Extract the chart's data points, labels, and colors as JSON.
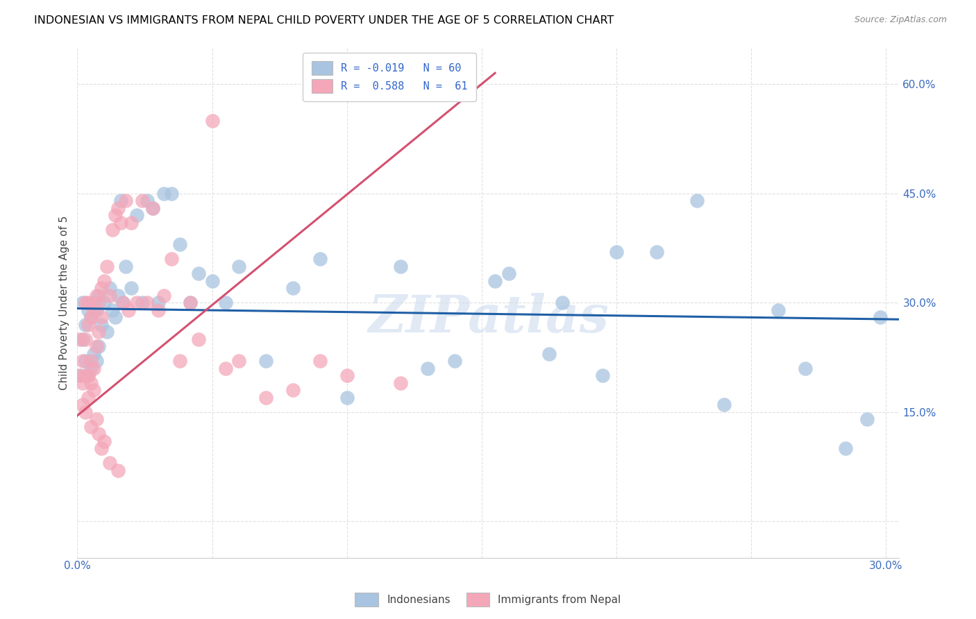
{
  "title": "INDONESIAN VS IMMIGRANTS FROM NEPAL CHILD POVERTY UNDER THE AGE OF 5 CORRELATION CHART",
  "source": "Source: ZipAtlas.com",
  "ylabel": "Child Poverty Under the Age of 5",
  "legend1": "Indonesians",
  "legend2": "Immigrants from Nepal",
  "xlim": [
    0.0,
    0.305
  ],
  "ylim": [
    -0.05,
    0.65
  ],
  "ytick_positions": [
    0.0,
    0.15,
    0.3,
    0.45,
    0.6
  ],
  "ytick_labels": [
    "",
    "15.0%",
    "30.0%",
    "45.0%",
    "60.0%"
  ],
  "xtick_positions": [
    0.0,
    0.05,
    0.1,
    0.15,
    0.2,
    0.25,
    0.3
  ],
  "xtick_labels": [
    "0.0%",
    "",
    "",
    "",
    "",
    "",
    "30.0%"
  ],
  "watermark": "ZIPatlas",
  "blue_color": "#a8c4e0",
  "pink_color": "#f4a7b9",
  "line_blue_color": "#1f5fa6",
  "line_pink_color": "#d45070",
  "blue_line_x": [
    0.0,
    0.305
  ],
  "blue_line_y": [
    0.292,
    0.277
  ],
  "pink_line_x": [
    0.0,
    0.155
  ],
  "pink_line_y": [
    0.145,
    0.615
  ],
  "indo_x": [
    0.001,
    0.002,
    0.002,
    0.003,
    0.003,
    0.004,
    0.004,
    0.005,
    0.005,
    0.006,
    0.006,
    0.007,
    0.007,
    0.008,
    0.008,
    0.009,
    0.01,
    0.011,
    0.012,
    0.013,
    0.014,
    0.015,
    0.016,
    0.017,
    0.018,
    0.02,
    0.022,
    0.024,
    0.026,
    0.028,
    0.03,
    0.032,
    0.035,
    0.038,
    0.042,
    0.045,
    0.05,
    0.055,
    0.06,
    0.07,
    0.08,
    0.09,
    0.1,
    0.12,
    0.14,
    0.16,
    0.18,
    0.2,
    0.23,
    0.26,
    0.13,
    0.155,
    0.175,
    0.195,
    0.215,
    0.24,
    0.27,
    0.285,
    0.293,
    0.298
  ],
  "indo_y": [
    0.2,
    0.25,
    0.3,
    0.22,
    0.27,
    0.2,
    0.29,
    0.21,
    0.28,
    0.23,
    0.3,
    0.22,
    0.29,
    0.24,
    0.31,
    0.27,
    0.3,
    0.26,
    0.32,
    0.29,
    0.28,
    0.31,
    0.44,
    0.3,
    0.35,
    0.32,
    0.42,
    0.3,
    0.44,
    0.43,
    0.3,
    0.45,
    0.45,
    0.38,
    0.3,
    0.34,
    0.33,
    0.3,
    0.35,
    0.22,
    0.32,
    0.36,
    0.17,
    0.35,
    0.22,
    0.34,
    0.3,
    0.37,
    0.44,
    0.29,
    0.21,
    0.33,
    0.23,
    0.2,
    0.37,
    0.16,
    0.21,
    0.1,
    0.14,
    0.28
  ],
  "nepal_x": [
    0.001,
    0.001,
    0.002,
    0.002,
    0.003,
    0.003,
    0.003,
    0.004,
    0.004,
    0.004,
    0.005,
    0.005,
    0.005,
    0.006,
    0.006,
    0.007,
    0.007,
    0.008,
    0.008,
    0.009,
    0.009,
    0.01,
    0.011,
    0.012,
    0.013,
    0.014,
    0.015,
    0.016,
    0.017,
    0.018,
    0.019,
    0.02,
    0.022,
    0.024,
    0.026,
    0.028,
    0.03,
    0.032,
    0.035,
    0.038,
    0.042,
    0.045,
    0.05,
    0.055,
    0.06,
    0.07,
    0.08,
    0.09,
    0.1,
    0.12,
    0.002,
    0.003,
    0.004,
    0.005,
    0.006,
    0.007,
    0.008,
    0.009,
    0.01,
    0.012,
    0.015
  ],
  "nepal_y": [
    0.2,
    0.25,
    0.19,
    0.22,
    0.2,
    0.25,
    0.3,
    0.2,
    0.27,
    0.3,
    0.19,
    0.22,
    0.28,
    0.21,
    0.29,
    0.24,
    0.31,
    0.26,
    0.3,
    0.28,
    0.32,
    0.33,
    0.35,
    0.31,
    0.4,
    0.42,
    0.43,
    0.41,
    0.3,
    0.44,
    0.29,
    0.41,
    0.3,
    0.44,
    0.3,
    0.43,
    0.29,
    0.31,
    0.36,
    0.22,
    0.3,
    0.25,
    0.55,
    0.21,
    0.22,
    0.17,
    0.18,
    0.22,
    0.2,
    0.19,
    0.16,
    0.15,
    0.17,
    0.13,
    0.18,
    0.14,
    0.12,
    0.1,
    0.11,
    0.08,
    0.07
  ]
}
